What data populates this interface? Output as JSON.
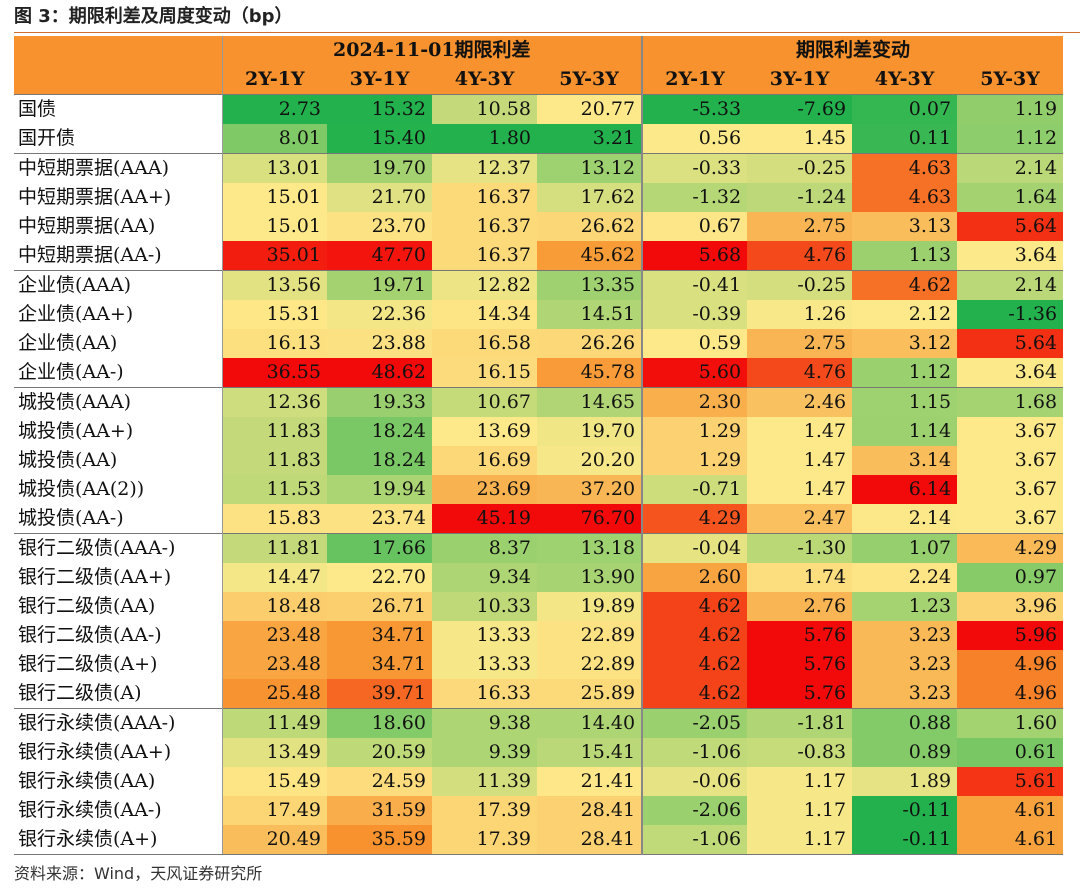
{
  "title": "图 3：期限利差及周度变动（bp）",
  "source": "资料来源：Wind，天风证券研究所",
  "header": {
    "group_left": "2024-11-01期限利差",
    "group_right": "期限利差变动",
    "columns": [
      "2Y-1Y",
      "3Y-1Y",
      "4Y-3Y",
      "5Y-3Y",
      "2Y-1Y",
      "3Y-1Y",
      "4Y-3Y",
      "5Y-3Y"
    ]
  },
  "rows": [
    {
      "name": "国债",
      "spread": [
        2.73,
        15.32,
        10.58,
        20.77
      ],
      "change": [
        -5.33,
        -7.69,
        0.07,
        1.19
      ],
      "group_start": true
    },
    {
      "name": "国开债",
      "spread": [
        8.01,
        15.4,
        1.8,
        3.21
      ],
      "change": [
        0.56,
        1.45,
        0.11,
        1.12
      ]
    },
    {
      "name": "中短期票据(AAA)",
      "spread": [
        13.01,
        19.7,
        12.37,
        13.12
      ],
      "change": [
        -0.33,
        -0.25,
        4.63,
        2.14
      ],
      "group_start": true
    },
    {
      "name": "中短期票据(AA+)",
      "spread": [
        15.01,
        21.7,
        16.37,
        17.62
      ],
      "change": [
        -1.32,
        -1.24,
        4.63,
        1.64
      ]
    },
    {
      "name": "中短期票据(AA)",
      "spread": [
        15.01,
        23.7,
        16.37,
        26.62
      ],
      "change": [
        0.67,
        2.75,
        3.13,
        5.64
      ]
    },
    {
      "name": "中短期票据(AA-)",
      "spread": [
        35.01,
        47.7,
        16.37,
        45.62
      ],
      "change": [
        5.68,
        4.76,
        1.13,
        3.64
      ]
    },
    {
      "name": "企业债(AAA)",
      "spread": [
        13.56,
        19.71,
        12.82,
        13.35
      ],
      "change": [
        -0.41,
        -0.25,
        4.62,
        2.14
      ],
      "group_start": true
    },
    {
      "name": "企业债(AA+)",
      "spread": [
        15.31,
        22.36,
        14.34,
        14.51
      ],
      "change": [
        -0.39,
        1.26,
        2.12,
        -1.36
      ]
    },
    {
      "name": "企业债(AA)",
      "spread": [
        16.13,
        23.88,
        16.58,
        26.26
      ],
      "change": [
        0.59,
        2.75,
        3.12,
        5.64
      ]
    },
    {
      "name": "企业债(AA-)",
      "spread": [
        36.55,
        48.62,
        16.15,
        45.78
      ],
      "change": [
        5.6,
        4.76,
        1.12,
        3.64
      ]
    },
    {
      "name": "城投债(AAA)",
      "spread": [
        12.36,
        19.33,
        10.67,
        14.65
      ],
      "change": [
        2.3,
        2.46,
        1.15,
        1.68
      ],
      "group_start": true
    },
    {
      "name": "城投债(AA+)",
      "spread": [
        11.83,
        18.24,
        13.69,
        19.7
      ],
      "change": [
        1.29,
        1.47,
        1.14,
        3.67
      ]
    },
    {
      "name": "城投债(AA)",
      "spread": [
        11.83,
        18.24,
        16.69,
        20.2
      ],
      "change": [
        1.29,
        1.47,
        3.14,
        3.67
      ]
    },
    {
      "name": "城投债(AA(2))",
      "spread": [
        11.53,
        19.94,
        23.69,
        37.2
      ],
      "change": [
        -0.71,
        1.47,
        6.14,
        3.67
      ]
    },
    {
      "name": "城投债(AA-)",
      "spread": [
        15.83,
        23.74,
        45.19,
        76.7
      ],
      "change": [
        4.29,
        2.47,
        2.14,
        3.67
      ]
    },
    {
      "name": "银行二级债(AAA-)",
      "spread": [
        11.81,
        17.66,
        8.37,
        13.18
      ],
      "change": [
        -0.04,
        -1.3,
        1.07,
        4.29
      ],
      "group_start": true
    },
    {
      "name": "银行二级债(AA+)",
      "spread": [
        14.47,
        22.7,
        9.34,
        13.9
      ],
      "change": [
        2.6,
        1.74,
        2.24,
        0.97
      ]
    },
    {
      "name": "银行二级债(AA)",
      "spread": [
        18.48,
        26.71,
        10.33,
        19.89
      ],
      "change": [
        4.62,
        2.76,
        1.23,
        3.96
      ]
    },
    {
      "name": "银行二级债(AA-)",
      "spread": [
        23.48,
        34.71,
        13.33,
        22.89
      ],
      "change": [
        4.62,
        5.76,
        3.23,
        5.96
      ]
    },
    {
      "name": "银行二级债(A+)",
      "spread": [
        23.48,
        34.71,
        13.33,
        22.89
      ],
      "change": [
        4.62,
        5.76,
        3.23,
        4.96
      ]
    },
    {
      "name": "银行二级债(A)",
      "spread": [
        25.48,
        39.71,
        16.33,
        25.89
      ],
      "change": [
        4.62,
        5.76,
        3.23,
        4.96
      ]
    },
    {
      "name": "银行永续债(AAA-)",
      "spread": [
        11.49,
        18.6,
        9.38,
        14.4
      ],
      "change": [
        -2.05,
        -1.81,
        0.88,
        1.6
      ],
      "group_start": true
    },
    {
      "name": "银行永续债(AA+)",
      "spread": [
        13.49,
        20.59,
        9.39,
        15.41
      ],
      "change": [
        -1.06,
        -0.83,
        0.89,
        0.61
      ]
    },
    {
      "name": "银行永续债(AA)",
      "spread": [
        15.49,
        24.59,
        11.39,
        21.41
      ],
      "change": [
        -0.06,
        1.17,
        1.89,
        5.61
      ]
    },
    {
      "name": "银行永续债(AA-)",
      "spread": [
        17.49,
        31.59,
        17.39,
        28.41
      ],
      "change": [
        -2.06,
        1.17,
        -0.11,
        4.61
      ]
    },
    {
      "name": "银行永续债(A+)",
      "spread": [
        20.49,
        35.59,
        17.39,
        28.41
      ],
      "change": [
        -1.06,
        1.17,
        -0.11,
        4.61
      ]
    }
  ],
  "heatmap_colors": {
    "green": "#22b14c",
    "yellow": "#fde98a",
    "orange": "#f7922e",
    "red": "#f20a0a"
  }
}
